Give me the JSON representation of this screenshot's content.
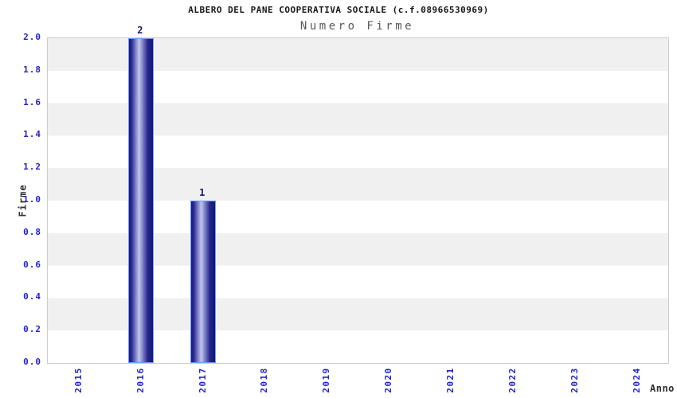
{
  "chart": {
    "title": "ALBERO DEL PANE COOPERATIVA SOCIALE (c.f.08966530969)",
    "subtitle": "Numero Firme",
    "x_axis_label": "Anno",
    "y_axis_label": "Firme"
  },
  "chart_data": {
    "type": "bar",
    "title": "ALBERO DEL PANE COOPERATIVA SOCIALE (c.f.08966530969)",
    "subtitle": "Numero Firme",
    "xlabel": "Anno",
    "ylabel": "Firme",
    "categories": [
      "2015",
      "2016",
      "2017",
      "2018",
      "2019",
      "2020",
      "2021",
      "2022",
      "2023",
      "2024"
    ],
    "values": [
      0,
      2,
      1,
      0,
      0,
      0,
      0,
      0,
      0,
      0
    ],
    "bar_value_labels": [
      "",
      "2",
      "1",
      "",
      "",
      "",
      "",
      "",
      "",
      ""
    ],
    "ylim": [
      0,
      2
    ],
    "y_tick_step": 0.2,
    "y_tick_labels": [
      "0.0",
      "0.2",
      "0.4",
      "0.6",
      "0.8",
      "1.0",
      "1.2",
      "1.4",
      "1.6",
      "1.8",
      "2.0"
    ],
    "grid": "horizontal-stripes",
    "legend": "none"
  },
  "colors": {
    "title_text": "#161616",
    "subtitle_text": "#585858",
    "tick_label": "#2222cc",
    "bar_value_label": "#191970",
    "bar_edge_dark": "#1b1b82",
    "bar_center_light": "#c2c6ee",
    "bar_border": "#6f9bf5",
    "stripe_gray": "#f0f0f0",
    "plot_border": "#cccccc",
    "axis_title_text": "#2f2f2f",
    "background": "#ffffff"
  }
}
